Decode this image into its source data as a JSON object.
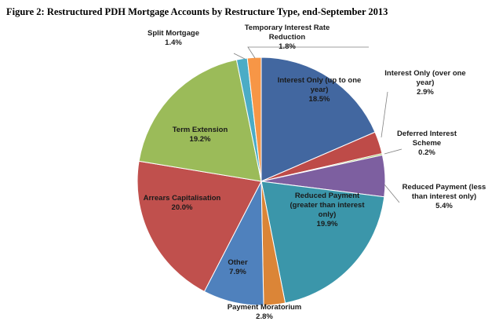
{
  "chart_data": {
    "type": "pie",
    "title": "Figure 2: Restructured PDH Mortgage Accounts by Restructure Type, end-September 2013",
    "slices": [
      {
        "label_lines": [
          "Interest Only (up to one",
          "year)"
        ],
        "value_text": "18.5%",
        "value": 18.5,
        "color": "#4267A0"
      },
      {
        "label_lines": [
          "Interest Only (over one",
          "year)"
        ],
        "value_text": "2.9%",
        "value": 2.9,
        "color": "#BE4B48"
      },
      {
        "label_lines": [
          "Deferred Interest",
          "Scheme"
        ],
        "value_text": "0.2%",
        "value": 0.2,
        "color": "#98B954"
      },
      {
        "label_lines": [
          "Reduced Payment (less",
          "than interest only)"
        ],
        "value_text": "5.4%",
        "value": 5.4,
        "color": "#7D5FA0"
      },
      {
        "label_lines": [
          "Reduced Payment",
          "(greater than interest",
          "only)"
        ],
        "value_text": "19.9%",
        "value": 19.9,
        "color": "#3B96AA"
      },
      {
        "label_lines": [
          "Payment Moratorium"
        ],
        "value_text": "2.8%",
        "value": 2.8,
        "color": "#DB8537"
      },
      {
        "label_lines": [
          "Other"
        ],
        "value_text": "7.9%",
        "value": 7.9,
        "color": "#4F81BD"
      },
      {
        "label_lines": [
          "Arrears Capitalisation"
        ],
        "value_text": "20.0%",
        "value": 20.0,
        "color": "#C0504D"
      },
      {
        "label_lines": [
          "Term Extension"
        ],
        "value_text": "19.2%",
        "value": 19.2,
        "color": "#9BBB59"
      },
      {
        "label_lines": [
          "Split Mortgage"
        ],
        "value_text": "1.4%",
        "value": 1.4,
        "color": "#4BACC6"
      },
      {
        "label_lines": [
          "Temporary Interest Rate",
          "Reduction"
        ],
        "value_text": "1.8%",
        "value": 1.8,
        "color": "#F79646"
      }
    ]
  }
}
